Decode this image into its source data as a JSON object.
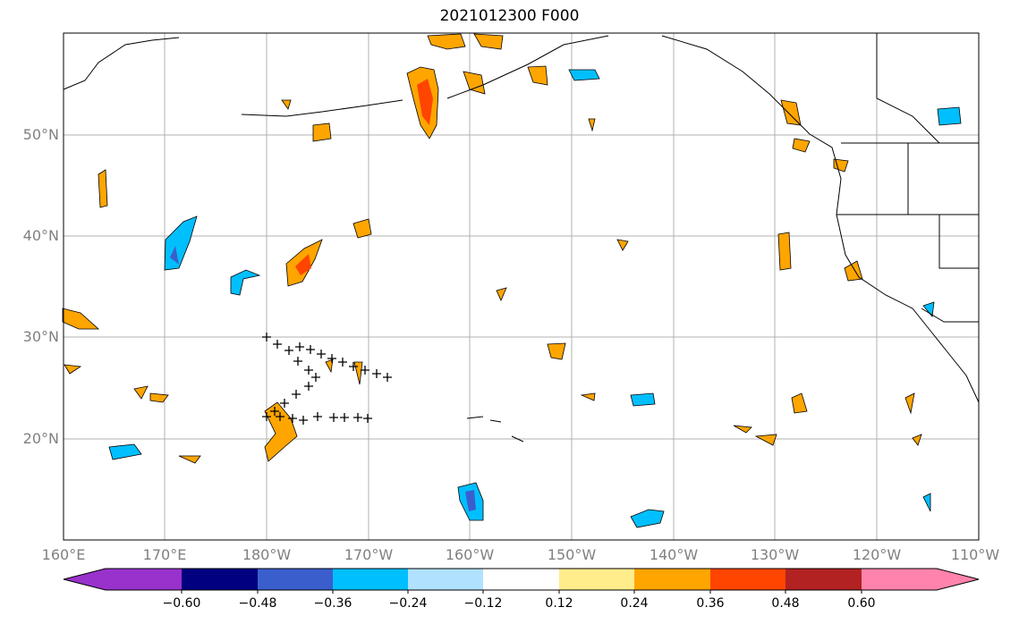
{
  "title": "2021012300 F000",
  "map": {
    "latitude_labels": [
      "50°N",
      "40°N",
      "30°N",
      "20°N"
    ],
    "longitude_labels": [
      "160°E",
      "170°E",
      "180°W",
      "170°W",
      "160°W",
      "150°W",
      "140°W",
      "130°W",
      "120°W",
      "110°W"
    ],
    "extent": {
      "lon_min": 160,
      "lon_max": 250,
      "lat_min": 10,
      "lat_max": 60
    },
    "gridlines": true
  },
  "colorbar": {
    "tick_labels": [
      "−0.60",
      "−0.48",
      "−0.36",
      "−0.24",
      "−0.12",
      "0.12",
      "0.24",
      "0.36",
      "0.48",
      "0.60"
    ],
    "colors": [
      "#9932cc",
      "#000080",
      "#3a5fcd",
      "#00bfff",
      "#b0e2ff",
      "#ffffff",
      "#ffec8b",
      "#ffa500",
      "#ff4500",
      "#b22222",
      "#ff83ac"
    ],
    "extend": "both"
  },
  "palette": {
    "ocean": "#ffffff",
    "coast": "#000000",
    "grid": "#b0b0b0",
    "tick_text": "#808080",
    "marker": "#000000"
  }
}
